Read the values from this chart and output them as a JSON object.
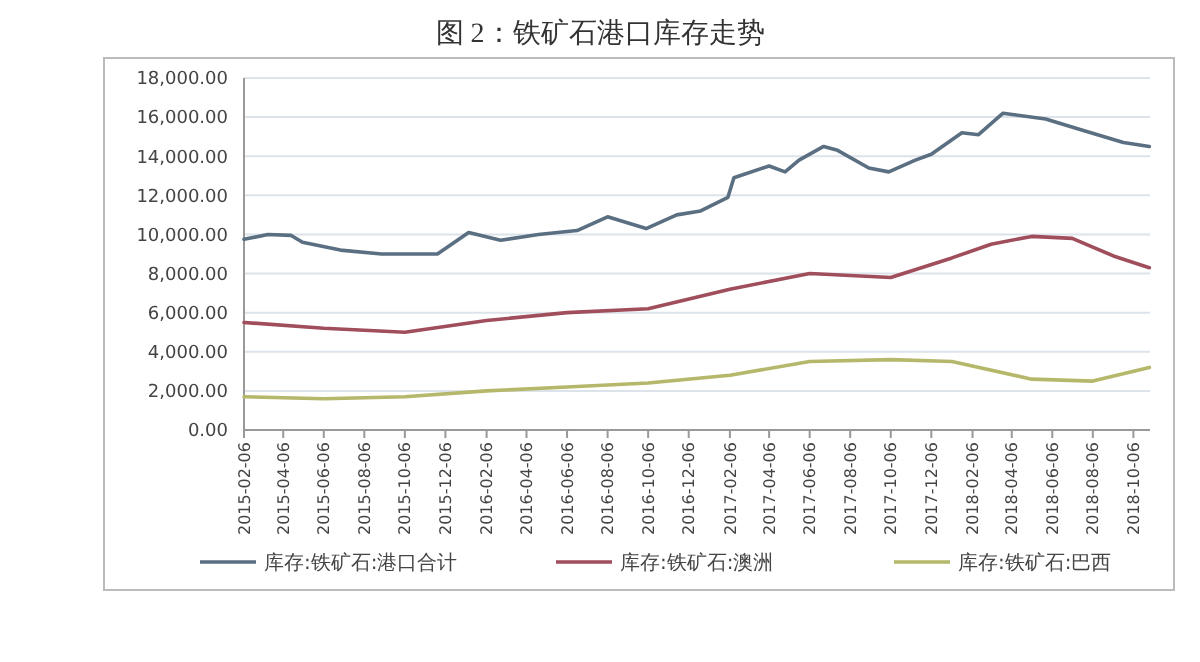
{
  "chart_data": {
    "type": "line",
    "title": "图 2：铁矿石港口库存走势",
    "ylim": [
      0,
      18000
    ],
    "yticks": [
      {
        "value": 0,
        "label": "0.00"
      },
      {
        "value": 2000,
        "label": "2,000.00"
      },
      {
        "value": 4000,
        "label": "4,000.00"
      },
      {
        "value": 6000,
        "label": "6,000.00"
      },
      {
        "value": 8000,
        "label": "8,000.00"
      },
      {
        "value": 10000,
        "label": "10,000.00"
      },
      {
        "value": 12000,
        "label": "12,000.00"
      },
      {
        "value": 14000,
        "label": "14,000.00"
      },
      {
        "value": 16000,
        "label": "16,000.00"
      },
      {
        "value": 18000,
        "label": "18,000.00"
      }
    ],
    "xlim": [
      "2015-02-06",
      "2018-10-31"
    ],
    "xticks": [
      "2015-02-06",
      "2015-04-06",
      "2015-06-06",
      "2015-08-06",
      "2015-10-06",
      "2015-12-06",
      "2016-02-06",
      "2016-04-06",
      "2016-06-06",
      "2016-08-06",
      "2016-10-06",
      "2016-12-06",
      "2017-02-06",
      "2017-04-06",
      "2017-06-06",
      "2017-08-06",
      "2017-10-06",
      "2017-12-06",
      "2018-02-06",
      "2018-04-06",
      "2018-06-06",
      "2018-08-06",
      "2018-10-06"
    ],
    "grid": "y",
    "legend": "bottom",
    "line_style": "solid",
    "marker": "none",
    "series": [
      {
        "name": "库存:铁矿石:港口合计",
        "color": "#5b6f82",
        "x": [
          "2015-02-06",
          "2015-03-14",
          "2015-04-18",
          "2015-05-05",
          "2015-07-01",
          "2015-09-01",
          "2015-11-24",
          "2016-01-10",
          "2016-02-27",
          "2016-04-24",
          "2016-06-21",
          "2016-08-06",
          "2016-10-03",
          "2016-11-18",
          "2016-12-24",
          "2017-02-03",
          "2017-02-12",
          "2017-04-06",
          "2017-04-30",
          "2017-05-21",
          "2017-06-27",
          "2017-07-18",
          "2017-09-03",
          "2017-10-03",
          "2017-11-12",
          "2017-12-06",
          "2018-01-21",
          "2018-02-15",
          "2018-03-24",
          "2018-05-27",
          "2018-07-24",
          "2018-09-21",
          "2018-10-30"
        ],
        "values": [
          9750,
          10000,
          9950,
          9600,
          9200,
          9000,
          9000,
          10100,
          9700,
          10000,
          10200,
          10900,
          10300,
          11000,
          11200,
          11900,
          12900,
          13500,
          13200,
          13800,
          14500,
          14300,
          13400,
          13200,
          13800,
          14100,
          15200,
          15100,
          16200,
          15900,
          15300,
          14700,
          14500
        ]
      },
      {
        "name": "库存:铁矿石:澳洲",
        "color": "#a04d5c",
        "x": [
          "2015-02-06",
          "2015-06-06",
          "2015-10-06",
          "2016-02-06",
          "2016-06-06",
          "2016-10-06",
          "2017-02-06",
          "2017-06-06",
          "2017-10-06",
          "2018-01-06",
          "2018-03-06",
          "2018-05-06",
          "2018-07-06",
          "2018-09-06",
          "2018-10-30"
        ],
        "values": [
          5500,
          5200,
          5000,
          5600,
          6000,
          6200,
          7200,
          8000,
          7800,
          8800,
          9500,
          9900,
          9800,
          8900,
          8300
        ]
      },
      {
        "name": "库存:铁矿石:巴西",
        "color": "#b5b86a",
        "x": [
          "2015-02-06",
          "2015-06-06",
          "2015-10-06",
          "2016-02-06",
          "2016-06-06",
          "2016-10-06",
          "2017-02-06",
          "2017-06-06",
          "2017-10-06",
          "2018-01-06",
          "2018-05-06",
          "2018-08-06",
          "2018-10-30"
        ],
        "values": [
          1700,
          1600,
          1700,
          2000,
          2200,
          2400,
          2800,
          3500,
          3600,
          3500,
          2600,
          2500,
          3200
        ]
      }
    ]
  }
}
